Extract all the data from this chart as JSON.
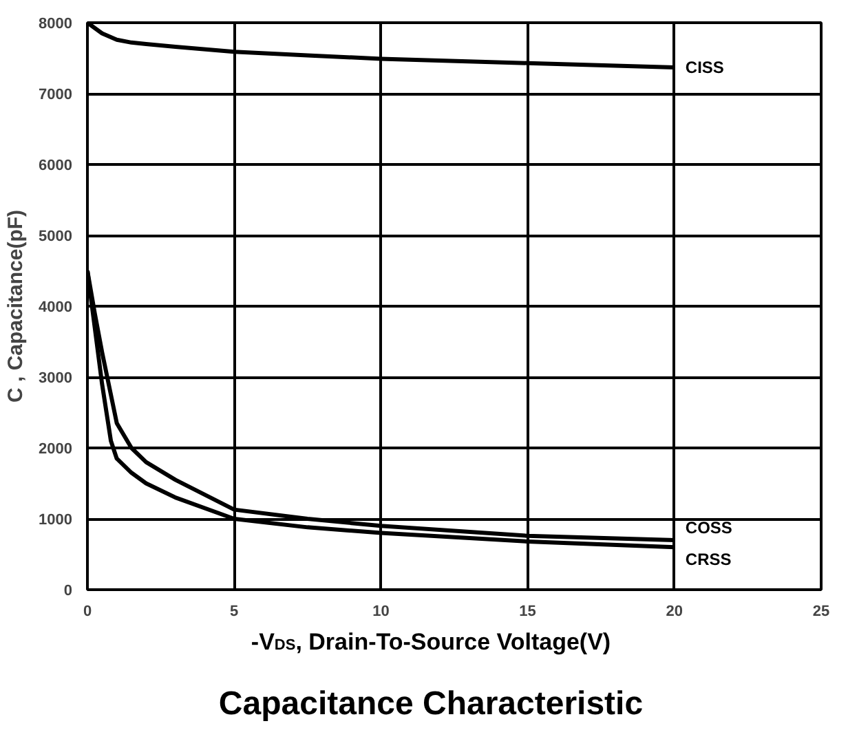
{
  "chart_data": {
    "type": "line",
    "title": "Capacitance Characteristic",
    "xlabel": "-V$_{DS}$, Drain-To-Source Voltage(V)",
    "ylabel": "C , Capacitance(pF)",
    "xlim": [
      0,
      25
    ],
    "ylim": [
      0,
      8000
    ],
    "xticks": [
      0,
      5,
      10,
      15,
      20,
      25
    ],
    "yticks": [
      0,
      1000,
      2000,
      3000,
      4000,
      5000,
      6000,
      7000,
      8000
    ],
    "grid": true,
    "line_style": "solid",
    "series": [
      {
        "name": "CISS",
        "color": "#000000",
        "x": [
          0,
          0.5,
          1,
          1.5,
          2,
          3,
          5,
          7.5,
          10,
          15,
          20
        ],
        "values": [
          8000,
          7850,
          7760,
          7720,
          7700,
          7660,
          7590,
          7540,
          7490,
          7430,
          7370
        ]
      },
      {
        "name": "COSS",
        "color": "#000000",
        "x": [
          0,
          0.25,
          0.5,
          1,
          1.5,
          2,
          3,
          5,
          7.5,
          10,
          15,
          20
        ],
        "values": [
          4500,
          3900,
          3350,
          2350,
          2000,
          1800,
          1550,
          1130,
          1000,
          900,
          760,
          700
        ]
      },
      {
        "name": "CRSS",
        "color": "#000000",
        "x": [
          0,
          0.25,
          0.5,
          0.8,
          1,
          1.5,
          2,
          3,
          5,
          7.5,
          10,
          15,
          20
        ],
        "values": [
          4500,
          3700,
          2900,
          2100,
          1850,
          1650,
          1500,
          1300,
          1000,
          880,
          800,
          680,
          600
        ]
      }
    ]
  }
}
